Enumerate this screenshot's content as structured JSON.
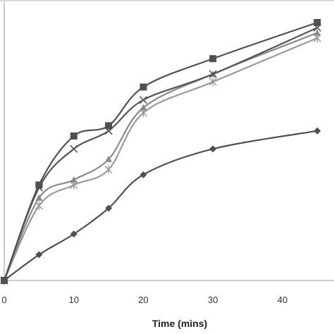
{
  "chart_data": {
    "type": "line",
    "title": "",
    "xlabel": "Time (mins)",
    "ylabel": "",
    "x_tick_labels": [
      "0",
      "10",
      "20",
      "30",
      "40"
    ],
    "x_ticks": [
      0,
      10,
      20,
      30,
      40
    ],
    "xlim": [
      0,
      47
    ],
    "ylim": [
      0,
      100
    ],
    "grid": false,
    "legend": "none",
    "series": [
      {
        "marker": "square",
        "color": "#505050",
        "x": [
          0,
          5,
          10,
          15,
          20,
          30,
          45
        ],
        "y": [
          0,
          37,
          56,
          60,
          75,
          86,
          100
        ]
      },
      {
        "marker": "x",
        "color": "#555555",
        "x": [
          0,
          5,
          10,
          15,
          20,
          30,
          45
        ],
        "y": [
          0,
          36,
          51,
          58,
          70,
          80,
          98
        ]
      },
      {
        "marker": "triangle",
        "color": "#8a8a8a",
        "x": [
          0,
          5,
          10,
          15,
          20,
          30,
          45
        ],
        "y": [
          0,
          32,
          39,
          47,
          67,
          80,
          96
        ]
      },
      {
        "marker": "asterisk",
        "color": "#9a9a9a",
        "x": [
          0,
          5,
          10,
          15,
          20,
          30,
          45
        ],
        "y": [
          0,
          29,
          37,
          43,
          65,
          77,
          94
        ]
      },
      {
        "marker": "diamond",
        "color": "#505050",
        "x": [
          0,
          5,
          10,
          15,
          20,
          30,
          45
        ],
        "y": [
          0,
          10,
          18,
          28,
          41,
          51,
          58
        ]
      }
    ]
  }
}
